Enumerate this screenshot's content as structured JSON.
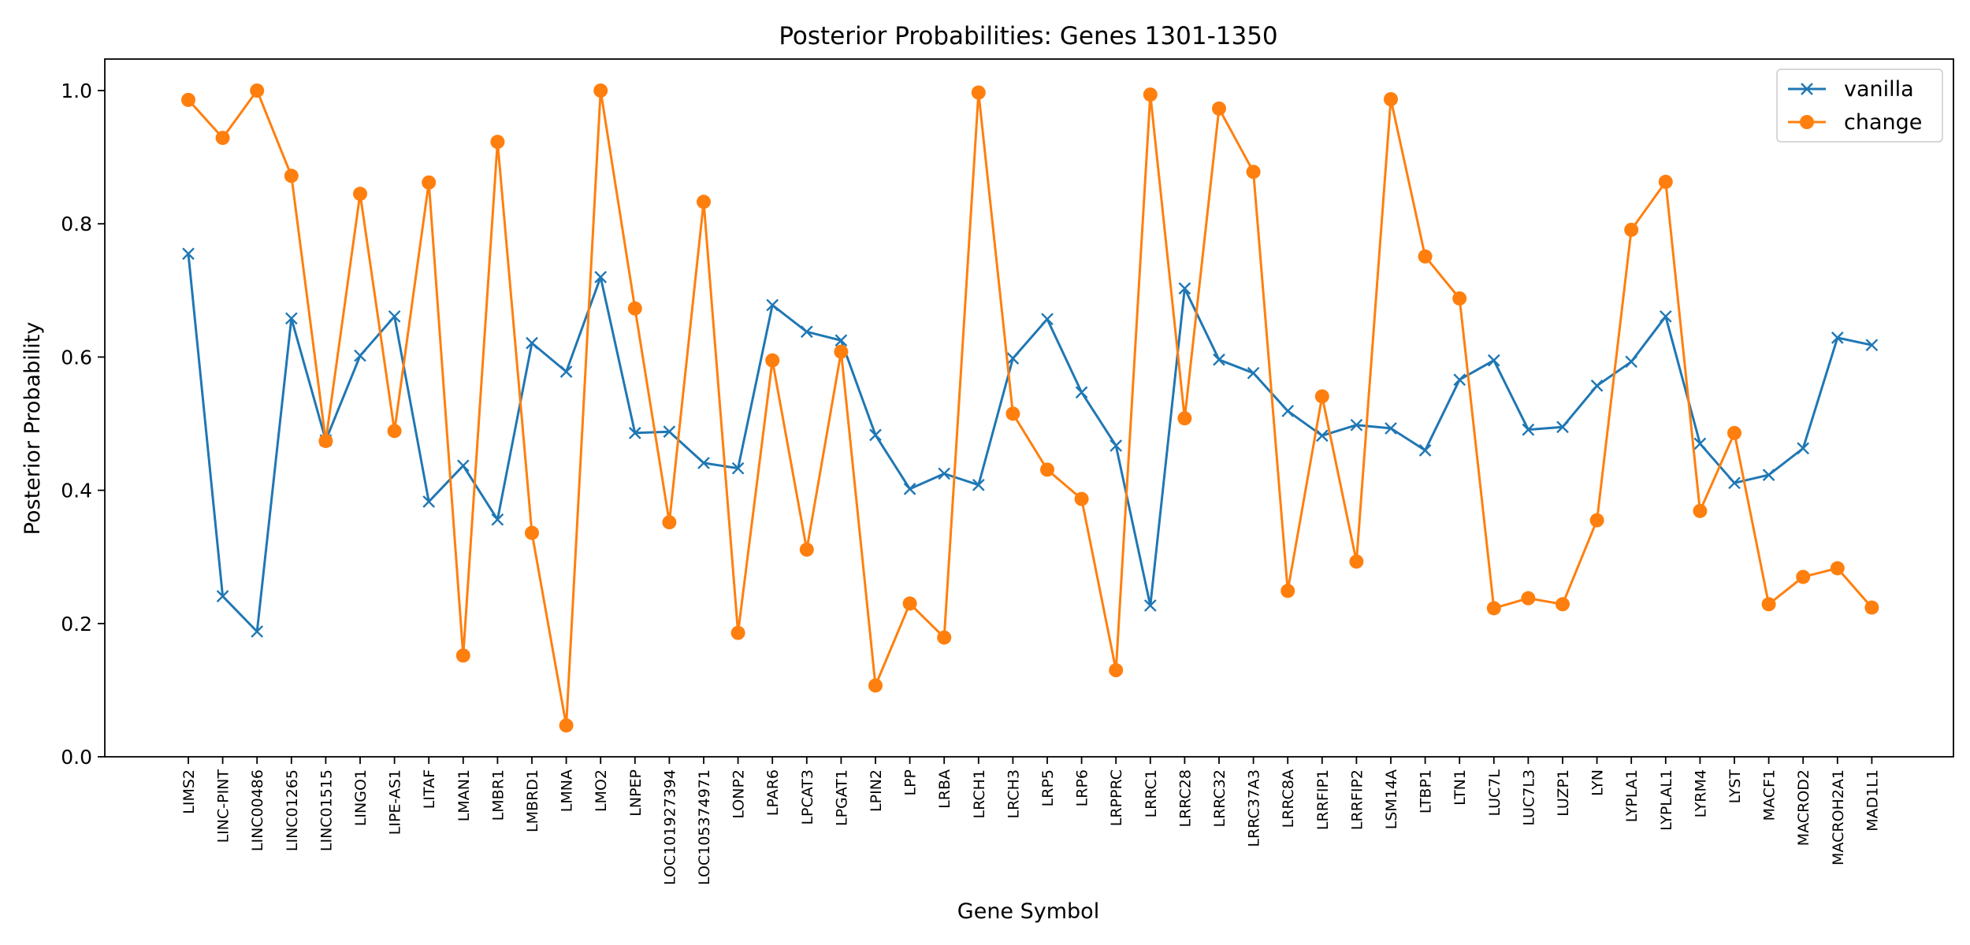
{
  "chart_data": {
    "type": "line",
    "title": "Posterior Probabilities: Genes 1301-1350",
    "xlabel": "Gene Symbol",
    "ylabel": "Posterior Probability",
    "ylim": [
      0.0,
      1.05
    ],
    "yticks": [
      "0.0",
      "0.2",
      "0.4",
      "0.6",
      "0.8",
      "1.0"
    ],
    "grid": false,
    "legend_position": "top-right",
    "categories": [
      "LIMS2",
      "LINC-PINT",
      "LINC00486",
      "LINC01265",
      "LINC01515",
      "LINGO1",
      "LIPE-AS1",
      "LITAF",
      "LMAN1",
      "LMBR1",
      "LMBRD1",
      "LMNA",
      "LMO2",
      "LNPEP",
      "LOC101927394",
      "LOC105374971",
      "LONP2",
      "LPAR6",
      "LPCAT3",
      "LPGAT1",
      "LPIN2",
      "LPP",
      "LRBA",
      "LRCH1",
      "LRCH3",
      "LRP5",
      "LRP6",
      "LRPPRC",
      "LRRC1",
      "LRRC28",
      "LRRC32",
      "LRRC37A3",
      "LRRC8A",
      "LRRFIP1",
      "LRRFIP2",
      "LSM14A",
      "LTBP1",
      "LTN1",
      "LUC7L",
      "LUC7L3",
      "LUZP1",
      "LYN",
      "LYPLA1",
      "LYPLAL1",
      "LYRM4",
      "LYST",
      "MACF1",
      "MACROD2",
      "MACROH2A1",
      "MAD1L1"
    ],
    "series": [
      {
        "name": "vanilla",
        "color": "#1f77b4",
        "marker": "x",
        "values": [
          0.755,
          0.241,
          0.188,
          0.658,
          0.475,
          0.602,
          0.661,
          0.383,
          0.437,
          0.356,
          0.621,
          0.578,
          0.72,
          0.486,
          0.488,
          0.441,
          0.433,
          0.678,
          0.638,
          0.625,
          0.483,
          0.402,
          0.425,
          0.408,
          0.598,
          0.657,
          0.547,
          0.467,
          0.227,
          0.703,
          0.596,
          0.576,
          0.519,
          0.482,
          0.498,
          0.493,
          0.46,
          0.566,
          0.595,
          0.491,
          0.495,
          0.557,
          0.593,
          0.661,
          0.47,
          0.411,
          0.423,
          0.463,
          0.629,
          0.618
        ]
      },
      {
        "name": "change",
        "color": "#ff7f0e",
        "marker": "o",
        "values": [
          0.986,
          0.929,
          1.0,
          0.872,
          0.474,
          0.845,
          0.489,
          0.862,
          0.152,
          0.923,
          0.336,
          0.047,
          1.0,
          0.673,
          0.352,
          0.833,
          0.186,
          0.595,
          0.311,
          0.608,
          0.107,
          0.23,
          0.179,
          0.997,
          0.515,
          0.431,
          0.387,
          0.13,
          0.994,
          0.508,
          0.973,
          0.878,
          0.249,
          0.541,
          0.293,
          0.987,
          0.751,
          0.688,
          0.223,
          0.238,
          0.229,
          0.355,
          0.791,
          0.863,
          0.369,
          0.486,
          0.229,
          0.27,
          0.283,
          0.224
        ]
      }
    ]
  }
}
